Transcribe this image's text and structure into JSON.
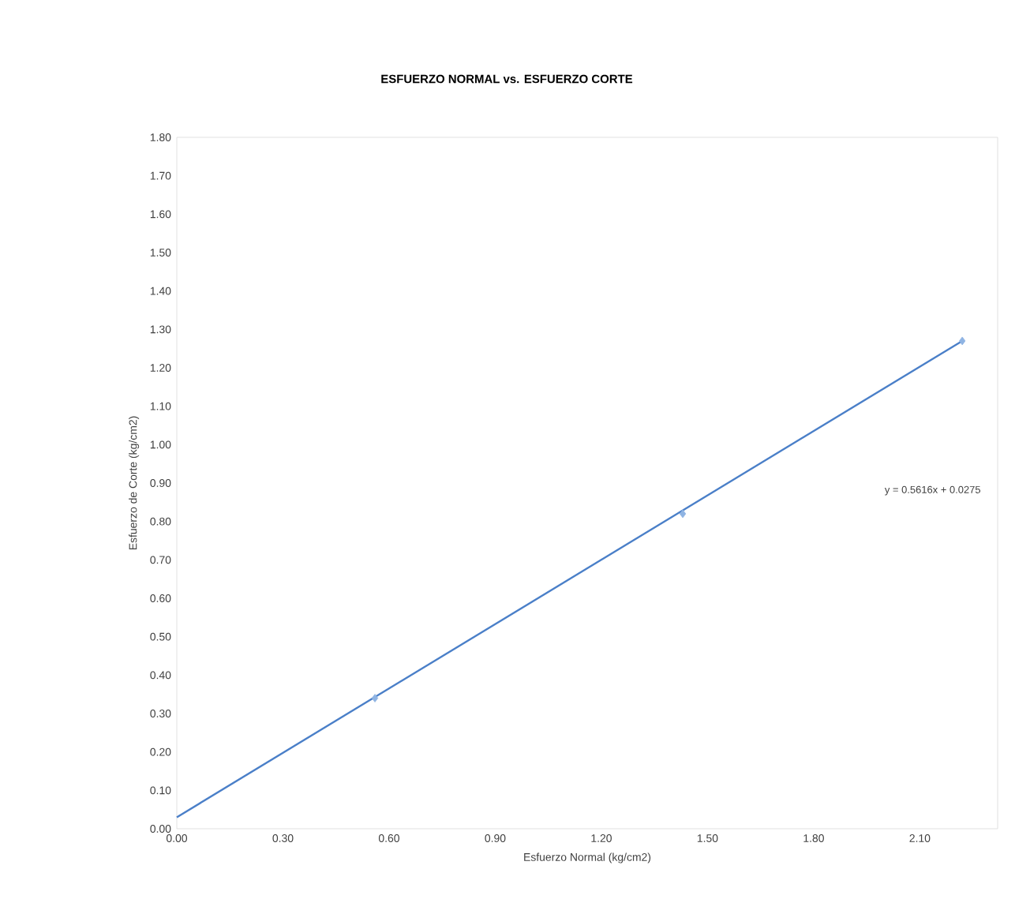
{
  "chart_data": {
    "type": "scatter",
    "title": "ESFUERZO NORMAL vs. ESFUERZO CORTE",
    "xlabel": "Esfuerzo Normal (kg/cm2)",
    "ylabel": "Esfuerzo de Corte (kg/cm2)",
    "series": [
      {
        "color": "#8fb4e3",
        "marker": "diamond",
        "x": [
          0.56,
          1.43,
          2.22
        ],
        "values": [
          0.34,
          0.82,
          1.27
        ]
      },
      {
        "type": "line",
        "color": "#4a7fc8",
        "marker": "none",
        "x": [
          0,
          2.22
        ],
        "values": [
          0.03,
          1.27
        ]
      }
    ],
    "xlim": [
      0,
      2.32
    ],
    "ylim": [
      0,
      1.8
    ],
    "xticks": [
      {
        "value": 0,
        "label": "0.00"
      },
      {
        "value": 0.3,
        "label": "0.30"
      },
      {
        "value": 0.6,
        "label": "0.60"
      },
      {
        "value": 0.9,
        "label": "0.90"
      },
      {
        "value": 1.2,
        "label": "1.20"
      },
      {
        "value": 1.5,
        "label": "1.50"
      },
      {
        "value": 1.8,
        "label": "1.80"
      },
      {
        "value": 2.1,
        "label": "2.10"
      }
    ],
    "yticks": [
      {
        "value": 0,
        "label": "0.00"
      },
      {
        "value": 0.1,
        "label": "0.10"
      },
      {
        "value": 0.2,
        "label": "0.20"
      },
      {
        "value": 0.3,
        "label": "0.30"
      },
      {
        "value": 0.4,
        "label": "0.40"
      },
      {
        "value": 0.5,
        "label": "0.50"
      },
      {
        "value": 0.6,
        "label": "0.60"
      },
      {
        "value": 0.7,
        "label": "0.70"
      },
      {
        "value": 0.8,
        "label": "0.80"
      },
      {
        "value": 0.9,
        "label": "0.90"
      },
      {
        "value": 1.0,
        "label": "1.00"
      },
      {
        "value": 1.1,
        "label": "1.10"
      },
      {
        "value": 1.2,
        "label": "1.20"
      },
      {
        "value": 1.3,
        "label": "1.30"
      },
      {
        "value": 1.4,
        "label": "1.40"
      },
      {
        "value": 1.5,
        "label": "1.50"
      },
      {
        "value": 1.6,
        "label": "1.60"
      },
      {
        "value": 1.7,
        "label": "1.70"
      },
      {
        "value": 1.8,
        "label": "1.80"
      }
    ],
    "annotations": [
      "y = 0.5616x + 0.0275"
    ],
    "grid": false
  }
}
